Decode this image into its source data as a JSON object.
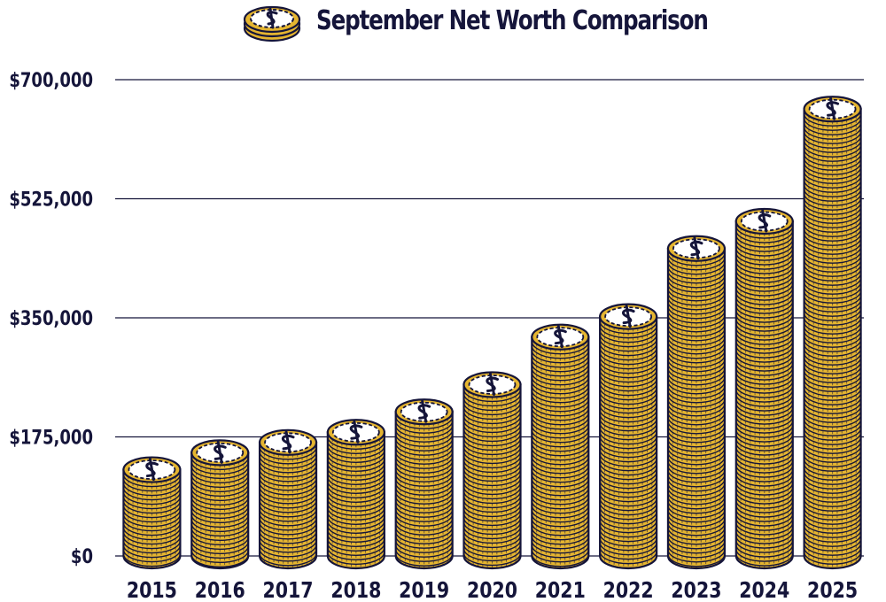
{
  "chart_data": {
    "type": "bar",
    "title": "September Net Worth Comparison",
    "categories": [
      "2015",
      "2016",
      "2017",
      "2018",
      "2019",
      "2020",
      "2021",
      "2022",
      "2023",
      "2024",
      "2025"
    ],
    "values": [
      145000,
      170000,
      185000,
      200000,
      230000,
      270000,
      340000,
      370000,
      470000,
      510000,
      675000
    ],
    "ylim": [
      0,
      700000
    ],
    "yticks": [
      0,
      175000,
      350000,
      525000,
      700000
    ],
    "ytick_labels": [
      "$0",
      "$175,000",
      "$350,000",
      "$525,000",
      "$700,000"
    ],
    "grid": true,
    "legend": "none",
    "colors": {
      "coin_fill": "#e5b530",
      "coin_top": "#ffffff",
      "outline": "#15153a",
      "gridline": "#15153a"
    },
    "icon": "coin-stack-icon"
  }
}
